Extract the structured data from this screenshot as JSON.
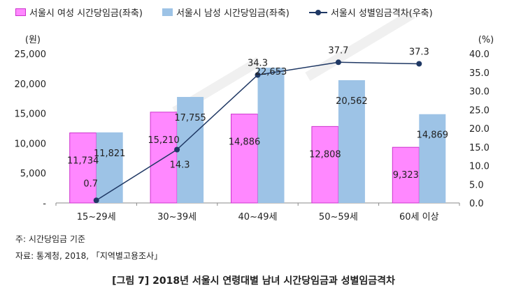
{
  "colors": {
    "female": "#FF88FF",
    "female_border": "#CC33CC",
    "male": "#9DC3E6",
    "gap_line": "#1F3864",
    "axis": "#888888",
    "watermark": "#e9e9e9"
  },
  "chart_data": {
    "type": "bar",
    "categories": [
      "15~29세",
      "30~39세",
      "40~49세",
      "50~59세",
      "60세 이상"
    ],
    "series": [
      {
        "name": "서울시 여성 시간당임금(좌축)",
        "axis": "left",
        "kind": "bar",
        "values": [
          11734,
          15210,
          14886,
          12808,
          9323
        ],
        "labels": [
          "11,734",
          "15,210",
          "14,886",
          "12,808",
          "9,323"
        ]
      },
      {
        "name": "서울시 남성 시간당임금(좌축)",
        "axis": "left",
        "kind": "bar",
        "values": [
          11821,
          17755,
          22653,
          20562,
          14869
        ],
        "labels": [
          "11,821",
          "17,755",
          "22,653",
          "20,562",
          "14,869"
        ]
      },
      {
        "name": "서울시 성별임금격차(우축)",
        "axis": "right",
        "kind": "line",
        "values": [
          0.7,
          14.3,
          34.3,
          37.7,
          37.3
        ],
        "labels": [
          "0.7",
          "14.3",
          "34.3",
          "37.7",
          "37.3"
        ]
      }
    ],
    "left_axis": {
      "unit": "(원)",
      "ylim": [
        0,
        25000
      ],
      "ticks": [
        0,
        5000,
        10000,
        15000,
        20000,
        25000
      ],
      "tick_labels": [
        "-",
        "5,000",
        "10,000",
        "15,000",
        "20,000",
        "25,000"
      ]
    },
    "right_axis": {
      "unit": "(%)",
      "ylim": [
        0,
        40
      ],
      "ticks": [
        0,
        5,
        10,
        15,
        20,
        25,
        30,
        35,
        40
      ],
      "tick_labels": [
        "0.0",
        "5.0",
        "10.0",
        "15.0",
        "20.0",
        "25.0",
        "30.0",
        "35.0",
        "40.0"
      ]
    },
    "grid": false,
    "legend_position": "top"
  },
  "notes": {
    "note": "주: 시간당임금 기준",
    "source": "자료: 통계청, 2018, 「지역별고용조사」"
  },
  "caption": "[그림 7] 2018년 서울시 연령대별 남녀 시간당임금과 성별임금격차"
}
